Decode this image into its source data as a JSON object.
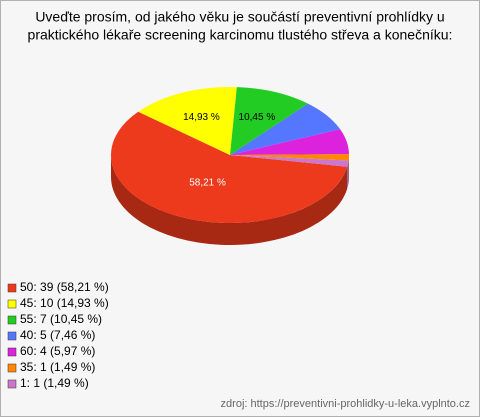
{
  "chart_data": {
    "type": "pie",
    "title": [
      "Uveďte prosím, od jakého věku je součástí preventivní prohlídky u",
      "praktického lékaře screening karcinomu tlustého střeva a konečníku:"
    ],
    "categories": [
      "50: 39 (58,21 %)",
      "45: 10 (14,93 %)",
      "55: 7 (10,45 %)",
      "40: 5 (7,46 %)",
      "60: 4 (5,97 %)",
      "35: 1 (1,49 %)",
      "1: 1 (1,49 %)"
    ],
    "values": [
      58.21,
      14.93,
      10.45,
      7.46,
      5.97,
      1.49,
      1.49
    ],
    "value_labels": [
      "58,21 %",
      "14,93 %",
      "10,45 %",
      null,
      null,
      null,
      null
    ],
    "colors": [
      "#ee3a1c",
      "#ffff00",
      "#22cc22",
      "#5577ff",
      "#dd22dd",
      "#ff8800",
      "#cc77cc"
    ],
    "legend": "bottom-left",
    "source": "zdroj: https://preventivni-prohlidky-u-leka.vyplnto.cz"
  }
}
